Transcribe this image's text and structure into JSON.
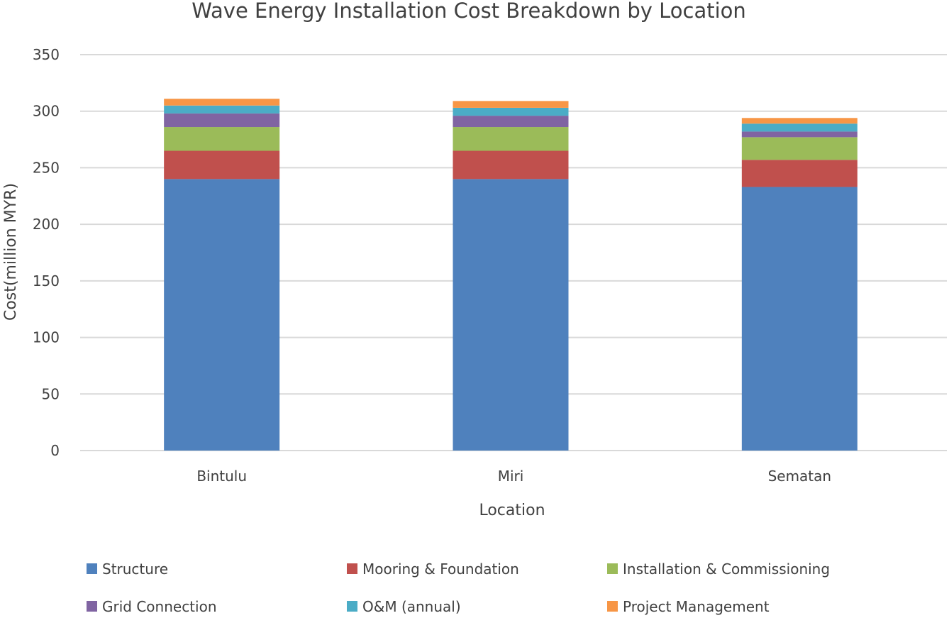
{
  "chart_data": {
    "type": "bar",
    "stacked": true,
    "title": "Wave Energy Installation Cost Breakdown by Location",
    "xlabel": "Location",
    "ylabel": "Cost(million MYR)",
    "ylim": [
      0,
      350
    ],
    "yticks": [
      0,
      50,
      100,
      150,
      200,
      250,
      300,
      350
    ],
    "grid": true,
    "legend_position": "bottom",
    "categories": [
      "Bintulu",
      "Miri",
      "Sematan"
    ],
    "series": [
      {
        "name": "Structure",
        "color": "#4f81bd",
        "values": [
          240,
          240,
          233
        ]
      },
      {
        "name": "Mooring & Foundation",
        "color": "#c0504d",
        "values": [
          25,
          25,
          24
        ]
      },
      {
        "name": "Installation & Commissioning",
        "color": "#9bbb59",
        "values": [
          21,
          21,
          20
        ]
      },
      {
        "name": "Grid Connection",
        "color": "#8064a2",
        "values": [
          12,
          10,
          5
        ]
      },
      {
        "name": "O&M (annual)",
        "color": "#4bacc6",
        "values": [
          7,
          7,
          7
        ]
      },
      {
        "name": "Project Management",
        "color": "#f79646",
        "values": [
          6,
          6,
          5
        ]
      }
    ]
  }
}
